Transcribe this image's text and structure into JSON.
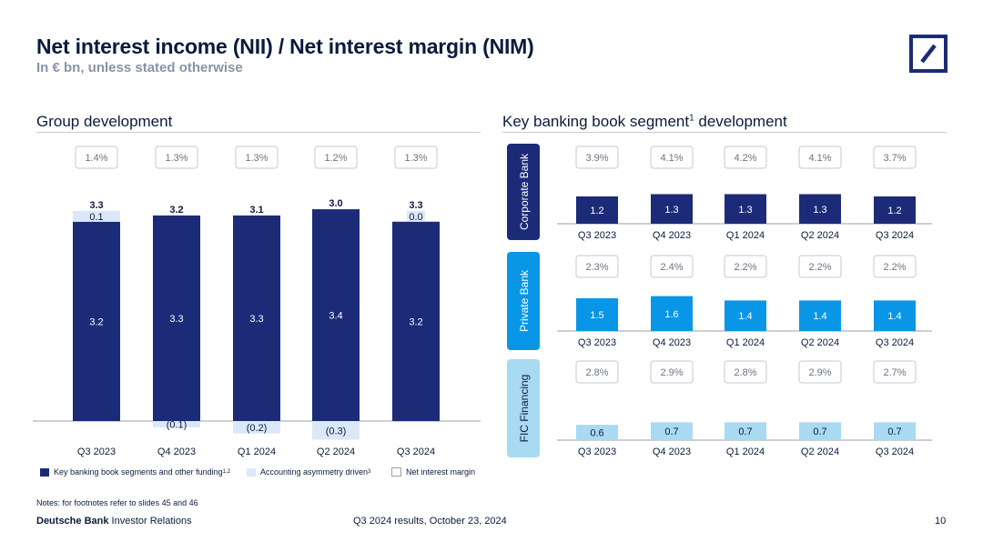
{
  "header": {
    "title": "Net interest income (NII) / Net interest margin (NIM)",
    "subtitle": "In € bn, unless stated otherwise"
  },
  "colors": {
    "navy": "#1c2b78",
    "private_bank": "#0a96e6",
    "fic": "#a8daf2",
    "asymmetry": "#dbe8f8",
    "nim_box_border": "#c6c9cf",
    "rule": "#c9ccd3"
  },
  "group": {
    "title": "Group development",
    "legend": {
      "segments": "Key banking book segments and other funding",
      "segments_sup": "1,2",
      "asymmetry": "Accounting asymmetry driven",
      "asymmetry_sup": "3",
      "nim": "Net interest margin"
    }
  },
  "segment": {
    "title": "Key banking book segment",
    "title_sup": "1",
    "title_rest": " development"
  },
  "chart_data": [
    {
      "type": "bar",
      "stacked": true,
      "title": "Group development",
      "categories": [
        "Q3 2023",
        "Q4 2023",
        "Q1 2024",
        "Q2 2024",
        "Q3 2024"
      ],
      "series": [
        {
          "name": "Key banking book segments and other funding",
          "values": [
            3.2,
            3.3,
            3.3,
            3.4,
            3.2
          ],
          "labels": [
            "3.2",
            "3.3",
            "3.3",
            "3.4",
            "3.2"
          ]
        },
        {
          "name": "Accounting asymmetry driven",
          "values": [
            0.1,
            -0.1,
            -0.2,
            -0.3,
            0.0
          ],
          "labels": [
            "0.1",
            "(0.1)",
            "(0.2)",
            "(0.3)",
            "0.0"
          ]
        }
      ],
      "totals": [
        3.3,
        3.2,
        3.1,
        3.0,
        3.3
      ],
      "total_labels": [
        "3.3",
        "3.2",
        "3.1",
        "3.0",
        "3.3"
      ],
      "nim": [
        "1.4%",
        "1.3%",
        "1.3%",
        "1.2%",
        "1.3%"
      ],
      "legend": "bottom"
    },
    {
      "type": "bar",
      "title": "Corporate Bank",
      "categories": [
        "Q3 2023",
        "Q4 2023",
        "Q1 2024",
        "Q2 2024",
        "Q3 2024"
      ],
      "values": [
        1.2,
        1.3,
        1.3,
        1.3,
        1.2
      ],
      "labels": [
        "1.2",
        "1.3",
        "1.3",
        "1.3",
        "1.2"
      ],
      "nim": [
        "3.9%",
        "4.1%",
        "4.2%",
        "4.1%",
        "3.7%"
      ]
    },
    {
      "type": "bar",
      "title": "Private Bank",
      "categories": [
        "Q3 2023",
        "Q4 2023",
        "Q1 2024",
        "Q2 2024",
        "Q3 2024"
      ],
      "values": [
        1.5,
        1.6,
        1.4,
        1.4,
        1.4
      ],
      "labels": [
        "1.5",
        "1.6",
        "1.4",
        "1.4",
        "1.4"
      ],
      "nim": [
        "2.3%",
        "2.4%",
        "2.2%",
        "2.2%",
        "2.2%"
      ]
    },
    {
      "type": "bar",
      "title": "FIC Financing",
      "categories": [
        "Q3 2023",
        "Q4 2023",
        "Q1 2024",
        "Q2 2024",
        "Q3 2024"
      ],
      "values": [
        0.6,
        0.7,
        0.7,
        0.7,
        0.7
      ],
      "labels": [
        "0.6",
        "0.7",
        "0.7",
        "0.7",
        "0.7"
      ],
      "nim": [
        "2.8%",
        "2.9%",
        "2.8%",
        "2.9%",
        "2.7%"
      ]
    }
  ],
  "footer": {
    "notes": "Notes: for footnotes refer to slides 45 and 46",
    "brand": "Deutsche Bank",
    "brand_rest": " Investor Relations",
    "date": "Q3 2024 results, October 23, 2024",
    "page": "10"
  }
}
